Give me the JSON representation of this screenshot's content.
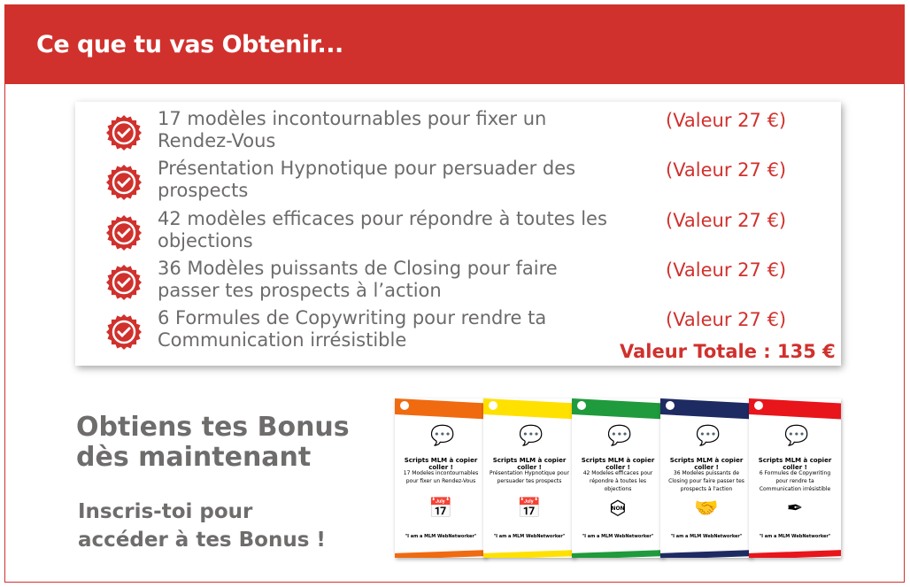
{
  "header": {
    "title": "Ce que tu vas Obtenir..."
  },
  "items": [
    {
      "text": "17 modèles incontournables pour fixer un Rendez-Vous",
      "value": "(Valeur 27 €)"
    },
    {
      "text": "Présentation Hypnotique pour persuader des prospects",
      "value": "(Valeur 27 €)"
    },
    {
      "text": "42 modèles efficaces pour répondre à toutes les objections",
      "value": "(Valeur 27 €)"
    },
    {
      "text": "36 Modèles puissants de Closing pour faire passer tes prospects à l’action",
      "value": "(Valeur 27 €)"
    },
    {
      "text": "6 Formules de Copywriting pour rendre ta Communication irrésistible",
      "value": "(Valeur 27 €)"
    }
  ],
  "total": "Valeur Totale : 135 €",
  "bonus": {
    "title": "Obtiens tes Bonus dès maintenant",
    "subtitle": "Inscris-toi pour accéder à tes Bonus !"
  },
  "books": [
    {
      "color": "#f06a10",
      "title": "Scripts MLM à copier coller !",
      "subtitle": "17 Modeles incontournables pour fixer un Rendez-Vous",
      "icon": "calendar-check",
      "quote": "\"I am a MLM WebNetworker\""
    },
    {
      "color": "#ffe100",
      "title": "Scripts MLM à copier coller !",
      "subtitle": "Présentation Hypnotique pour persuader tes prospects",
      "icon": "calendar-check",
      "quote": "\"I am a MLM WebNetworker\""
    },
    {
      "color": "#1f9a3c",
      "title": "Scripts MLM à copier coller !",
      "subtitle": "42 Modeles efficaces pour répondre à toutes les objections",
      "icon": "stop-hand",
      "icon_label": "NON",
      "quote": "\"I am a MLM WebNetworker\""
    },
    {
      "color": "#1e2a62",
      "title": "Scripts MLM à copier coller !",
      "subtitle": "36 Modeles puissants de Closing pour faire passer tes prospects à l'action",
      "icon": "handshake",
      "quote": "\"I am a MLM WebNetworker\""
    },
    {
      "color": "#e8151b",
      "title": "Scripts MLM à copier coller !",
      "subtitle": "6 Formules de Copywriting pour rendre ta Communication irrésistible",
      "icon": "fountain-pen",
      "quote": "\"I am a MLM WebNetworker\""
    }
  ],
  "colors": {
    "accent": "#d0312d",
    "text": "#6d6a6a"
  }
}
